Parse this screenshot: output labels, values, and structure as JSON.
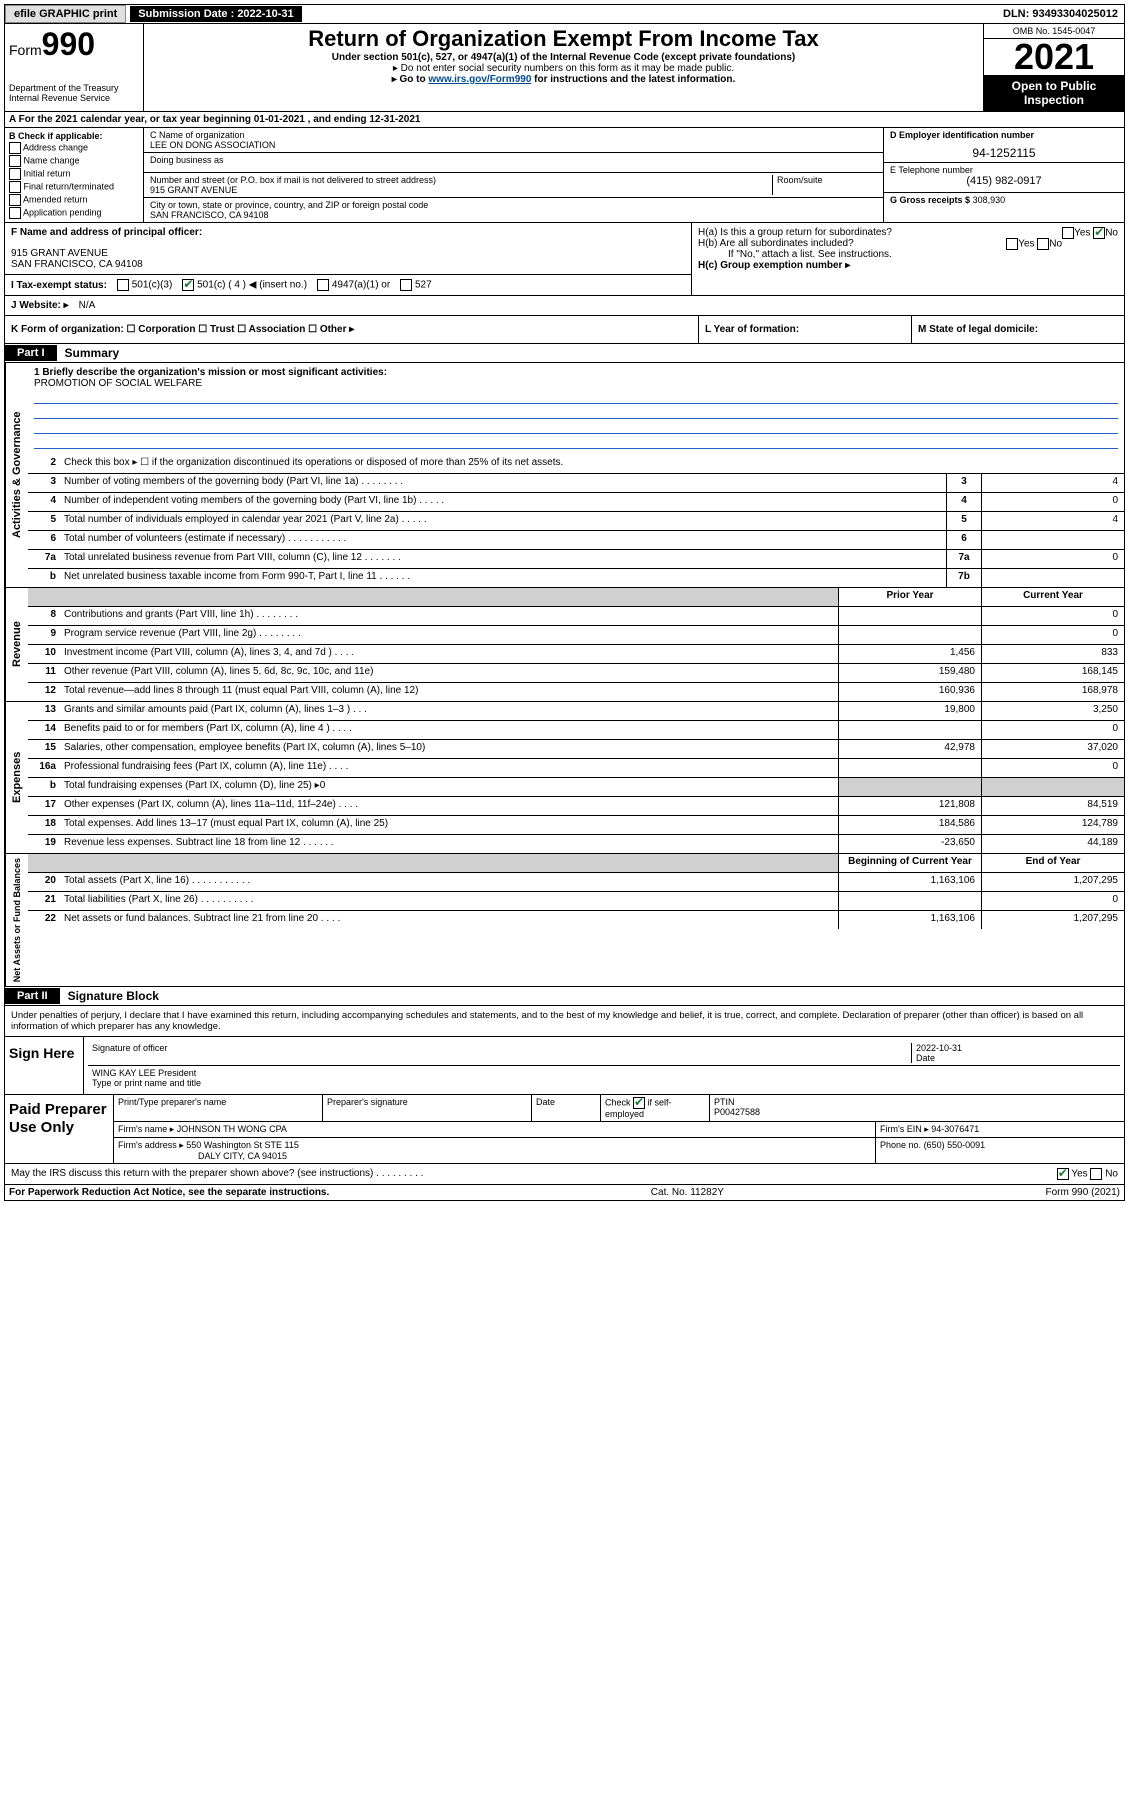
{
  "topbar": {
    "efile": "efile GRAPHIC print",
    "submission_label": "Submission Date : 2022-10-31",
    "dln": "DLN: 93493304025012"
  },
  "header": {
    "form_prefix": "Form",
    "form_number": "990",
    "dept": "Department of the Treasury",
    "irs": "Internal Revenue Service",
    "title": "Return of Organization Exempt From Income Tax",
    "sub1": "Under section 501(c), 527, or 4947(a)(1) of the Internal Revenue Code (except private foundations)",
    "sub2": "▸ Do not enter social security numbers on this form as it may be made public.",
    "sub3_prefix": "▸ Go to ",
    "sub3_link": "www.irs.gov/Form990",
    "sub3_suffix": " for instructions and the latest information.",
    "omb": "OMB No. 1545-0047",
    "year": "2021",
    "open": "Open to Public Inspection"
  },
  "row_a": "A For the 2021 calendar year, or tax year beginning 01-01-2021   , and ending 12-31-2021",
  "col_b": {
    "hdr": "B Check if applicable:",
    "items": [
      "Address change",
      "Name change",
      "Initial return",
      "Final return/terminated",
      "Amended return",
      "Application pending"
    ]
  },
  "col_c": {
    "name_lbl": "C Name of organization",
    "name": "LEE ON DONG ASSOCIATION",
    "dba_lbl": "Doing business as",
    "addr_lbl": "Number and street (or P.O. box if mail is not delivered to street address)",
    "room_lbl": "Room/suite",
    "addr": "915 GRANT AVENUE",
    "city_lbl": "City or town, state or province, country, and ZIP or foreign postal code",
    "city": "SAN FRANCISCO, CA  94108"
  },
  "col_d": {
    "ein_lbl": "D Employer identification number",
    "ein": "94-1252115",
    "tel_lbl": "E Telephone number",
    "tel": "(415) 982-0917",
    "gross_lbl": "G Gross receipts $",
    "gross": "308,930"
  },
  "row_f": {
    "lbl": "F Name and address of principal officer:",
    "addr1": "915 GRANT AVENUE",
    "addr2": "SAN FRANCISCO, CA  94108"
  },
  "row_h": {
    "ha": "H(a)  Is this a group return for subordinates?",
    "hb": "H(b)  Are all subordinates included?",
    "hb_note": "If \"No,\" attach a list. See instructions.",
    "hc": "H(c)  Group exemption number ▸",
    "yes": "Yes",
    "no": "No"
  },
  "row_i": {
    "lbl": "I   Tax-exempt status:",
    "o1": "501(c)(3)",
    "o2": "501(c) ( 4 ) ◀ (insert no.)",
    "o3": "4947(a)(1) or",
    "o4": "527"
  },
  "row_j": {
    "lbl": "J   Website: ▸",
    "val": "N/A"
  },
  "row_k": {
    "k1": "K Form of organization:   ☐ Corporation  ☐ Trust  ☐ Association  ☐ Other ▸",
    "k2": "L Year of formation:",
    "k3": "M State of legal domicile:"
  },
  "part1": {
    "tab": "Part I",
    "title": "Summary"
  },
  "mission": {
    "q": "1   Briefly describe the organization's mission or most significant activities:",
    "a": "PROMOTION OF SOCIAL WELFARE"
  },
  "gov_lines": [
    {
      "n": "2",
      "d": "Check this box ▸ ☐  if the organization discontinued its operations or disposed of more than 25% of its net assets."
    },
    {
      "n": "3",
      "d": "Number of voting members of the governing body (Part VI, line 1a)   .   .   .   .   .   .   .   .",
      "box": "3",
      "v": "4"
    },
    {
      "n": "4",
      "d": "Number of independent voting members of the governing body (Part VI, line 1b)  .   .   .   .   .",
      "box": "4",
      "v": "0"
    },
    {
      "n": "5",
      "d": "Total number of individuals employed in calendar year 2021 (Part V, line 2a)   .   .   .   .   .",
      "box": "5",
      "v": "4"
    },
    {
      "n": "6",
      "d": "Total number of volunteers (estimate if necessary)   .   .   .   .   .   .   .   .   .   .   .",
      "box": "6",
      "v": ""
    },
    {
      "n": "7a",
      "d": "Total unrelated business revenue from Part VIII, column (C), line 12   .   .   .   .   .   .   .",
      "box": "7a",
      "v": "0"
    },
    {
      "n": "b",
      "d": "Net unrelated business taxable income from Form 990-T, Part I, line 11   .   .   .   .   .   .",
      "box": "7b",
      "v": ""
    }
  ],
  "rev_hdr": {
    "prior": "Prior Year",
    "curr": "Current Year"
  },
  "rev_lines": [
    {
      "n": "8",
      "d": "Contributions and grants (Part VIII, line 1h)   .   .   .   .   .   .   .   .",
      "p": "",
      "c": "0"
    },
    {
      "n": "9",
      "d": "Program service revenue (Part VIII, line 2g)   .   .   .   .   .   .   .   .",
      "p": "",
      "c": "0"
    },
    {
      "n": "10",
      "d": "Investment income (Part VIII, column (A), lines 3, 4, and 7d )   .   .   .   .",
      "p": "1,456",
      "c": "833"
    },
    {
      "n": "11",
      "d": "Other revenue (Part VIII, column (A), lines 5, 6d, 8c, 9c, 10c, and 11e)",
      "p": "159,480",
      "c": "168,145"
    },
    {
      "n": "12",
      "d": "Total revenue—add lines 8 through 11 (must equal Part VIII, column (A), line 12)",
      "p": "160,936",
      "c": "168,978"
    }
  ],
  "exp_lines": [
    {
      "n": "13",
      "d": "Grants and similar amounts paid (Part IX, column (A), lines 1–3 )   .   .   .",
      "p": "19,800",
      "c": "3,250"
    },
    {
      "n": "14",
      "d": "Benefits paid to or for members (Part IX, column (A), line 4 )   .   .   .   .",
      "p": "",
      "c": "0"
    },
    {
      "n": "15",
      "d": "Salaries, other compensation, employee benefits (Part IX, column (A), lines 5–10)",
      "p": "42,978",
      "c": "37,020"
    },
    {
      "n": "16a",
      "d": "Professional fundraising fees (Part IX, column (A), line 11e)   .   .   .   .",
      "p": "",
      "c": "0"
    },
    {
      "n": "b",
      "d": "Total fundraising expenses (Part IX, column (D), line 25) ▸0",
      "p": "gray",
      "c": "gray"
    },
    {
      "n": "17",
      "d": "Other expenses (Part IX, column (A), lines 11a–11d, 11f–24e)   .   .   .   .",
      "p": "121,808",
      "c": "84,519"
    },
    {
      "n": "18",
      "d": "Total expenses. Add lines 13–17 (must equal Part IX, column (A), line 25)",
      "p": "184,586",
      "c": "124,789"
    },
    {
      "n": "19",
      "d": "Revenue less expenses. Subtract line 18 from line 12   .   .   .   .   .   .",
      "p": "-23,650",
      "c": "44,189"
    }
  ],
  "na_hdr": {
    "beg": "Beginning of Current Year",
    "end": "End of Year"
  },
  "na_lines": [
    {
      "n": "20",
      "d": "Total assets (Part X, line 16)   .   .   .   .   .   .   .   .   .   .   .",
      "p": "1,163,106",
      "c": "1,207,295"
    },
    {
      "n": "21",
      "d": "Total liabilities (Part X, line 26)   .   .   .   .   .   .   .   .   .   .",
      "p": "",
      "c": "0"
    },
    {
      "n": "22",
      "d": "Net assets or fund balances. Subtract line 21 from line 20   .   .   .   .",
      "p": "1,163,106",
      "c": "1,207,295"
    }
  ],
  "part2": {
    "tab": "Part II",
    "title": "Signature Block"
  },
  "sig": {
    "decl": "Under penalties of perjury, I declare that I have examined this return, including accompanying schedules and statements, and to the best of my knowledge and belief, it is true, correct, and complete. Declaration of preparer (other than officer) is based on all information of which preparer has any knowledge.",
    "sign_here": "Sign Here",
    "sig_officer": "Signature of officer",
    "date_lbl": "Date",
    "date": "2022-10-31",
    "name": "WING KAY LEE  President",
    "name_lbl": "Type or print name and title"
  },
  "prep": {
    "hdr": "Paid Preparer Use Only",
    "r1": {
      "c1": "Print/Type preparer's name",
      "c2": "Preparer's signature",
      "c3": "Date",
      "c4_lbl": "Check",
      "c4_txt": "if self-employed",
      "c5_lbl": "PTIN",
      "c5": "P00427588"
    },
    "r2": {
      "lbl": "Firm's name    ▸",
      "val": "JOHNSON TH WONG CPA",
      "ein_lbl": "Firm's EIN ▸",
      "ein": "94-3076471"
    },
    "r3": {
      "lbl": "Firm's address ▸",
      "val1": "550 Washington St STE 115",
      "val2": "DALY CITY, CA  94015",
      "ph_lbl": "Phone no.",
      "ph": "(650) 550-0091"
    }
  },
  "may_irs": "May the IRS discuss this return with the preparer shown above? (see instructions)   .   .   .   .   .   .   .   .   .",
  "footer": {
    "l": "For Paperwork Reduction Act Notice, see the separate instructions.",
    "m": "Cat. No. 11282Y",
    "r": "Form 990 (2021)"
  },
  "side_labels": {
    "gov": "Activities & Governance",
    "rev": "Revenue",
    "exp": "Expenses",
    "na": "Net Assets or Fund Balances"
  }
}
